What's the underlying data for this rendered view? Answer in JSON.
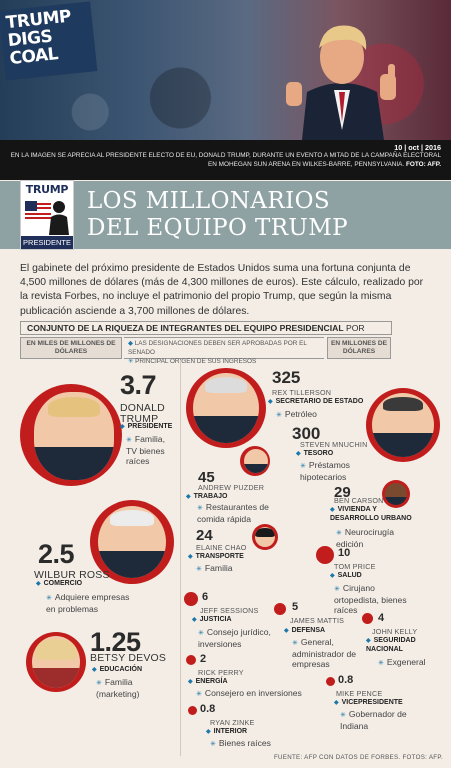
{
  "hero": {
    "sign_lines": [
      "TRUMP",
      "DIGS",
      "COAL"
    ],
    "date": "10 | oct | 2016",
    "caption": "EN LA IMAGEN SE APRECIA AL PRESIDENTE ELECTO DE EU, DONALD TRUMP, DURANTE UN EVENTO A MITAD DE LA CAMPAÑA ELECTORAL EN MOHEGAN SUN ARENA EN WILKES-BARRE, PENNSYLVANIA.",
    "photo_credit": "FOTO: AFP."
  },
  "logo": {
    "top": "TRUMP",
    "bottom": "PRESIDENTE"
  },
  "title_line1": "LOS MILLONARIOS",
  "title_line2": "DEL EQUIPO TRUMP",
  "intro": "El gabinete del próximo presidente de Estados Unidos suma una fortuna conjunta de 4,500 millones de dólares (más de 4,300 millones de euros). Este cálculo, realizado por la revista Forbes, no incluye el patrimonio del propio Trump, que según la misma publicación asciende a 3,700 millones de dólares.",
  "table": {
    "heading": "CONJUNTO DE LA RIQUEZA DE INTEGRANTES DEL EQUIPO PRESIDENCIAL",
    "heading_suffix": " POR PARTIDO",
    "left_unit": "EN MILES DE MILLONES DE DÓLARES",
    "right_unit": "EN MILLONES DE DÓLARES",
    "legend_1": "LAS DESIGNACIONES DEBEN SER APROBADAS POR EL SENADO",
    "legend_2": "PRINCIPAL ORIGEN DE SUS INGRESOS"
  },
  "people": {
    "trump": {
      "value": "3.7",
      "name": "DONALD TRUMP",
      "role": "PRESIDENTE",
      "source": "Familia, TV bienes raíces"
    },
    "ross": {
      "value": "2.5",
      "name": "WILBUR ROSS",
      "role": "COMERCIO",
      "source": "Adquiere empresas en problemas"
    },
    "devos": {
      "value": "1.25",
      "name": "BETSY DEVOS",
      "role": "EDUCACIÓN",
      "source": "Familia (marketing)"
    },
    "tillerson": {
      "value": "325",
      "name": "REX TILLERSON",
      "role": "SECRETARIO DE ESTADO",
      "source": "Petróleo"
    },
    "mnuchin": {
      "value": "300",
      "name": "STEVEN MNUCHIN",
      "role": "TESORO",
      "source": "Préstamos hipotecarios"
    },
    "puzder": {
      "value": "45",
      "name": "ANDREW PUZDER",
      "role": "TRABAJO",
      "source": "Restaurantes de comida rápida"
    },
    "carson": {
      "value": "29",
      "name": "BEN CARSON",
      "role": "VIVIENDA Y DESARROLLO URBANO",
      "source": "Neurocirugía edición"
    },
    "chao": {
      "value": "24",
      "name": "ELAINE CHAO",
      "role": "TRANSPORTE",
      "source": "Familia"
    },
    "price": {
      "value": "10",
      "name": "TOM PRICE",
      "role": "SALUD",
      "source": "Cirujano ortopedista, bienes raíces"
    },
    "sessions": {
      "value": "6",
      "name": "JEFF SESSIONS",
      "role": "JUSTICIA",
      "source": "Consejo jurídico, inversiones"
    },
    "mattis": {
      "value": "5",
      "name": "JAMES MATTIS",
      "role": "DEFENSA",
      "source": "General, administrador de empresas"
    },
    "kelly": {
      "value": "4",
      "name": "JOHN KELLY",
      "role": "SEGURIDAD NACIONAL",
      "source": "Exgeneral"
    },
    "perry": {
      "value": "2",
      "name": "RICK PERRY",
      "role": "ENERGÍA",
      "source": "Consejero en inversiones"
    },
    "pence": {
      "value": "0.8",
      "name": "MIKE PENCE",
      "role": "VICEPRESIDENTE",
      "source": "Gobernador de Indiana"
    },
    "zinke": {
      "value": "0.8",
      "name": "RYAN ZINKE",
      "role": "INTERIOR",
      "source": "Bienes raíces"
    }
  },
  "footer": "FUENTE: AFP CON DATOS DE FORBES. FOTOS: AFP.",
  "colors": {
    "accent_red": "#c21d1d",
    "accent_blue": "#1c78a8",
    "title_band": "#8ea1a3"
  }
}
